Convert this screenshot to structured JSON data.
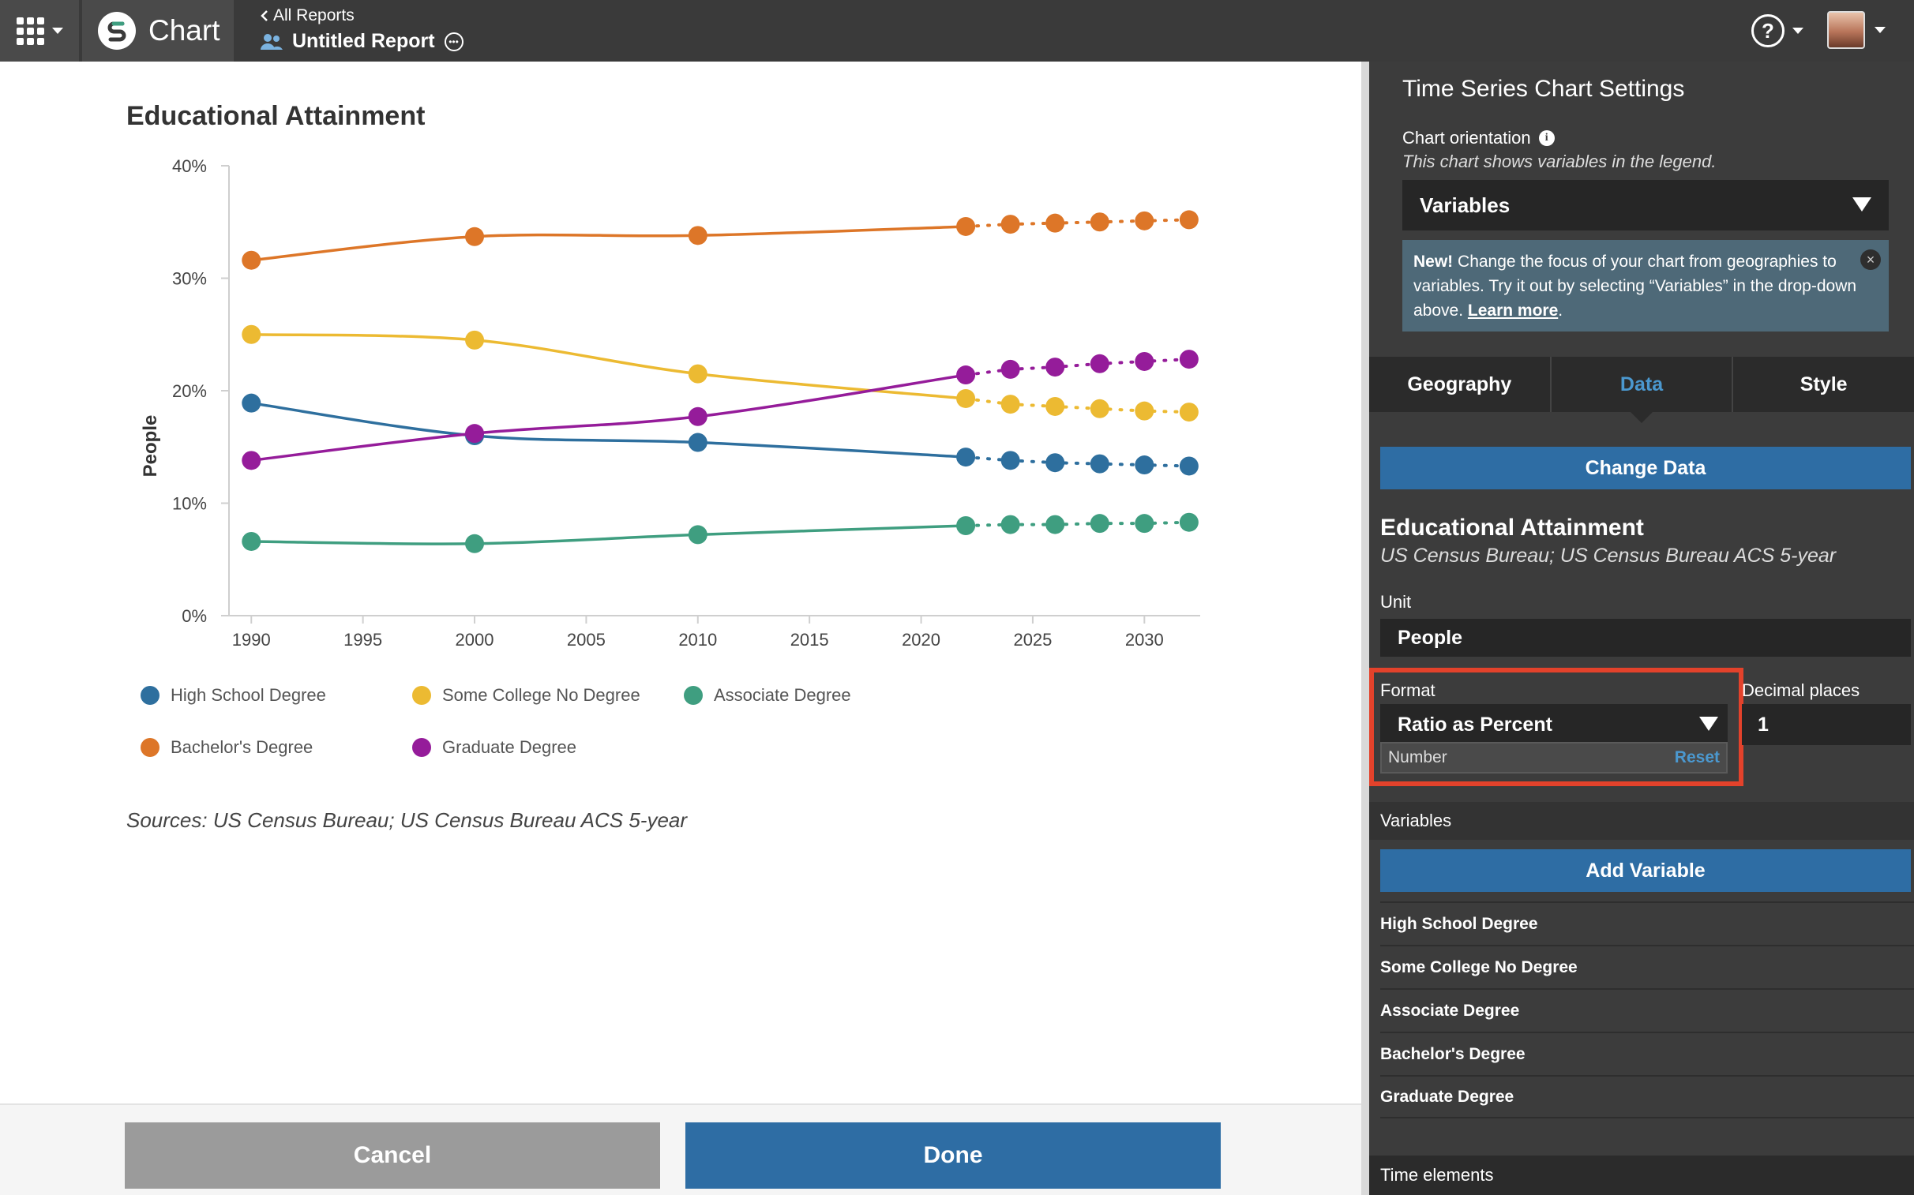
{
  "topbar": {
    "app_name": "Chart",
    "back_label": "All Reports",
    "report_title": "Untitled Report"
  },
  "chart_data": {
    "type": "line",
    "title": "Educational Attainment",
    "ylabel": "People",
    "xlabel": "",
    "ylim": [
      0,
      40
    ],
    "xlim": [
      1989,
      2032.5
    ],
    "xticks": [
      1990,
      1995,
      2000,
      2005,
      2010,
      2015,
      2020,
      2025,
      2030
    ],
    "yticks": [
      0,
      10,
      20,
      30,
      40
    ],
    "ytick_labels": [
      "0%",
      "10%",
      "20%",
      "30%",
      "40%"
    ],
    "actual_x": [
      1990,
      2000,
      2010,
      2022
    ],
    "projected_x": [
      2022,
      2024,
      2026,
      2028,
      2030,
      2032
    ],
    "legend_position": "bottom",
    "series": [
      {
        "name": "High School Degree",
        "color": "#2e6f9e",
        "actual": [
          18.9,
          16.0,
          15.4,
          14.1
        ],
        "projected": [
          14.1,
          13.8,
          13.6,
          13.5,
          13.4,
          13.3
        ]
      },
      {
        "name": "Some College No Degree",
        "color": "#ecba32",
        "actual": [
          25.0,
          24.5,
          21.5,
          19.3
        ],
        "projected": [
          19.3,
          18.8,
          18.6,
          18.4,
          18.2,
          18.1
        ]
      },
      {
        "name": "Associate Degree",
        "color": "#3f9e80",
        "actual": [
          6.6,
          6.4,
          7.2,
          8.0
        ],
        "projected": [
          8.0,
          8.1,
          8.1,
          8.2,
          8.2,
          8.3
        ]
      },
      {
        "name": "Bachelor's Degree",
        "color": "#dd7628",
        "actual": [
          31.6,
          33.7,
          33.8,
          34.6
        ],
        "projected": [
          34.6,
          34.8,
          34.9,
          35.0,
          35.1,
          35.2
        ]
      },
      {
        "name": "Graduate Degree",
        "color": "#951c9a",
        "actual": [
          13.8,
          16.2,
          17.7,
          21.4
        ],
        "projected": [
          21.4,
          21.9,
          22.1,
          22.4,
          22.6,
          22.8
        ]
      }
    ],
    "sources": "Sources: US Census Bureau; US Census Bureau ACS 5-year"
  },
  "buttons": {
    "cancel": "Cancel",
    "done": "Done"
  },
  "panel": {
    "title": "Time Series Chart Settings",
    "orientation_label": "Chart orientation",
    "orientation_help": "This chart shows variables in the legend.",
    "orientation_value": "Variables",
    "notice_new": "New!",
    "notice_text": " Change the focus of your chart from geographies to variables. Try it out by selecting “Variables” in the drop-down above. ",
    "notice_link": "Learn more",
    "notice_end": ".",
    "tabs": [
      "Geography",
      "Data",
      "Style"
    ],
    "active_tab": "Data",
    "change_data": "Change Data",
    "dataset_title": "Educational Attainment",
    "dataset_source": "US Census Bureau; US Census Bureau ACS 5-year",
    "unit_label": "Unit",
    "unit_value": "People",
    "format_label": "Format",
    "format_value": "Ratio as Percent",
    "format_sub": "Number",
    "reset": "Reset",
    "decimal_label": "Decimal places",
    "decimal_value": "1",
    "variables_label": "Variables",
    "add_variable": "Add Variable",
    "variables": [
      "High School Degree",
      "Some College No Degree",
      "Associate Degree",
      "Bachelor's Degree",
      "Graduate Degree"
    ],
    "time_elements": "Time elements"
  }
}
